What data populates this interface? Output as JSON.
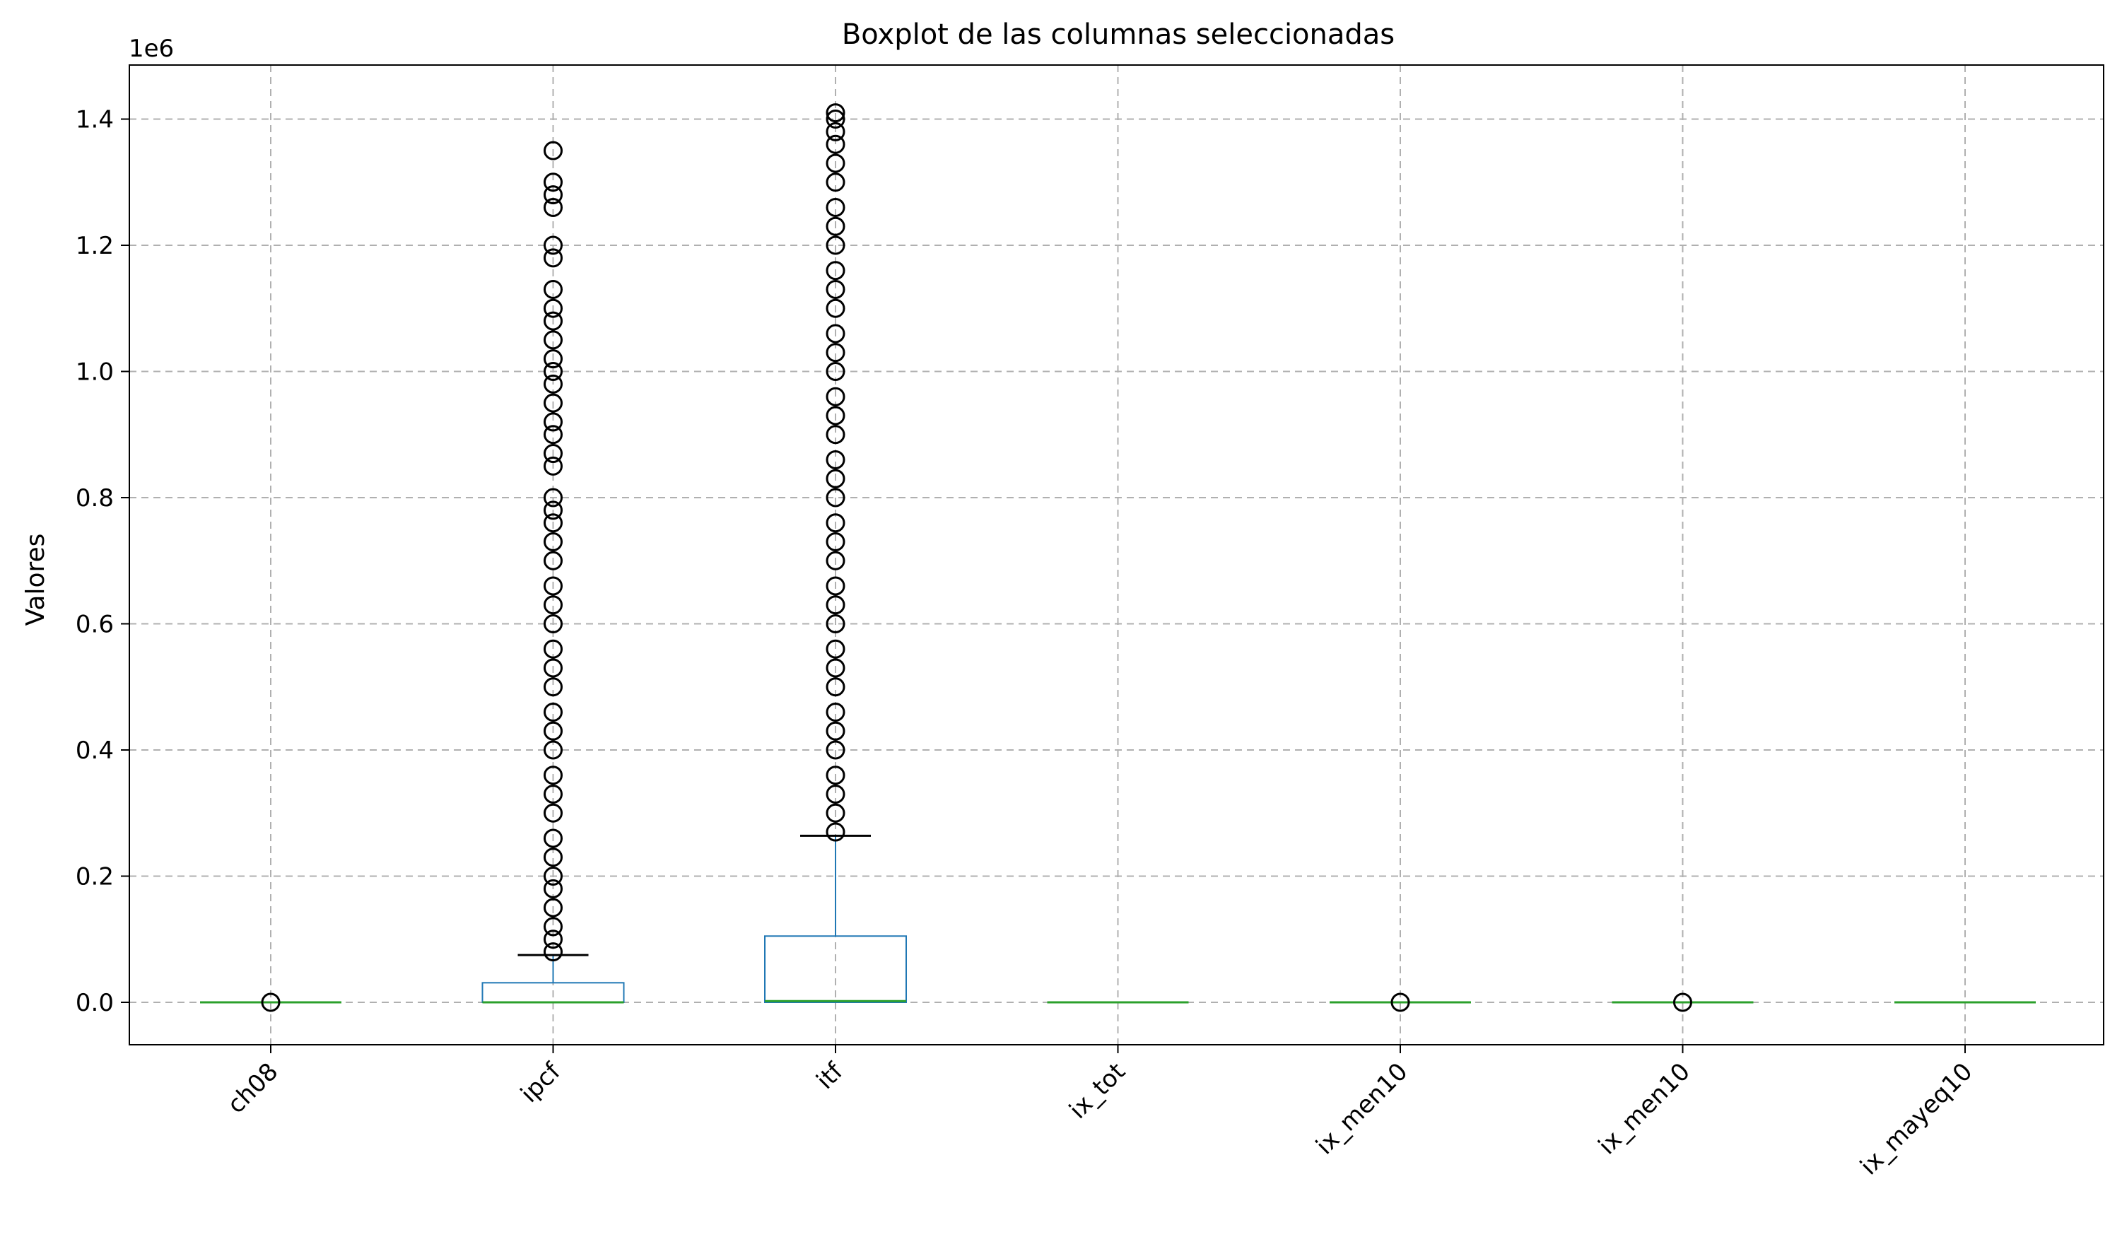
{
  "colors": {
    "box": "#1f77b4",
    "median": "#2ca02c",
    "whisker": "#000000",
    "flier": "#000000",
    "grid": "#b0b0b0",
    "axis": "#000000"
  },
  "chart_data": {
    "type": "boxplot",
    "title": "Boxplot de las columnas seleccionadas",
    "xlabel": "",
    "ylabel": "Valores",
    "y_offset_label": "1e6",
    "y_multiplier": 1000000,
    "ylim": [
      -0.07,
      1.485
    ],
    "yticks": [
      0.0,
      0.2,
      0.4,
      0.6,
      0.8,
      1.0,
      1.2,
      1.4
    ],
    "ytick_labels": [
      "0.0",
      "0.2",
      "0.4",
      "0.6",
      "0.8",
      "1.0",
      "1.2",
      "1.4"
    ],
    "categories": [
      "ch08",
      "ipcf",
      "itf",
      "ix_tot",
      "ix_men10",
      "ix_men10",
      "ix_mayeq10"
    ],
    "tick_label_rotation": 45,
    "grid": true,
    "grid_style": "dashed",
    "boxes": [
      {
        "label": "ch08",
        "whislo": 0.0,
        "q1": 0.0,
        "median": 0.0,
        "q3": 0.0,
        "whishi": 0.0,
        "fliers": [
          0.0
        ]
      },
      {
        "label": "ipcf",
        "whislo": 0.0,
        "q1": 0.0,
        "median": 0.0,
        "q3": 0.031,
        "whishi": 0.075,
        "fliers": [
          0.08,
          0.1,
          0.12,
          0.15,
          0.18,
          0.2,
          0.23,
          0.26,
          0.3,
          0.33,
          0.36,
          0.4,
          0.43,
          0.46,
          0.5,
          0.53,
          0.56,
          0.6,
          0.63,
          0.66,
          0.7,
          0.73,
          0.76,
          0.78,
          0.8,
          0.85,
          0.87,
          0.9,
          0.92,
          0.95,
          0.98,
          1.0,
          1.02,
          1.05,
          1.08,
          1.1,
          1.13,
          1.18,
          1.2,
          1.26,
          1.28,
          1.3,
          1.35
        ]
      },
      {
        "label": "itf",
        "whislo": 0.0,
        "q1": 0.0,
        "median": 0.002,
        "q3": 0.105,
        "whishi": 0.264,
        "fliers": [
          0.27,
          0.3,
          0.33,
          0.36,
          0.4,
          0.43,
          0.46,
          0.5,
          0.53,
          0.56,
          0.6,
          0.63,
          0.66,
          0.7,
          0.73,
          0.76,
          0.8,
          0.83,
          0.86,
          0.9,
          0.93,
          0.96,
          1.0,
          1.03,
          1.06,
          1.1,
          1.13,
          1.16,
          1.2,
          1.23,
          1.26,
          1.3,
          1.33,
          1.36,
          1.38,
          1.4,
          1.41
        ]
      },
      {
        "label": "ix_tot",
        "whislo": 0.0,
        "q1": 0.0,
        "median": 0.0,
        "q3": 0.0,
        "whishi": 0.0,
        "fliers": []
      },
      {
        "label": "ix_men10",
        "whislo": 0.0,
        "q1": 0.0,
        "median": 0.0,
        "q3": 0.0,
        "whishi": 0.0,
        "fliers": [
          0.0
        ]
      },
      {
        "label": "ix_men10",
        "whislo": 0.0,
        "q1": 0.0,
        "median": 0.0,
        "q3": 0.0,
        "whishi": 0.0,
        "fliers": [
          0.0
        ]
      },
      {
        "label": "ix_mayeq10",
        "whislo": 0.0,
        "q1": 0.0,
        "median": 0.0,
        "q3": 0.0,
        "whishi": 0.0,
        "fliers": []
      }
    ]
  }
}
